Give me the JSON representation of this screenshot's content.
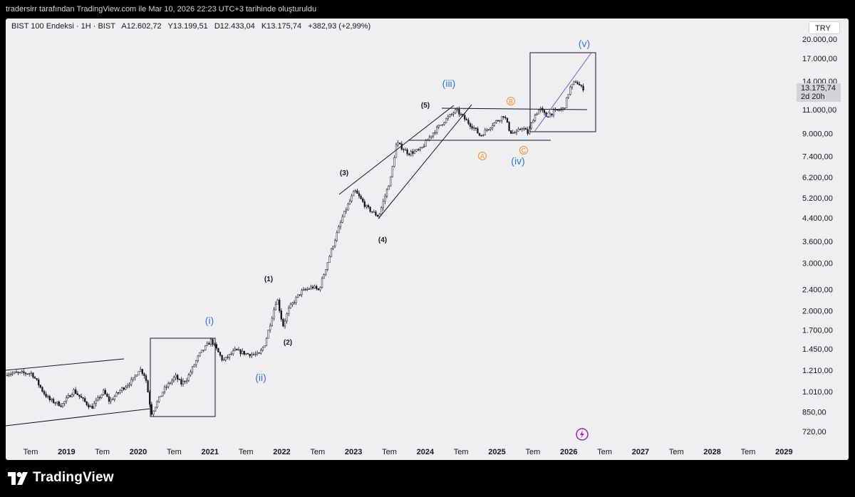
{
  "header": {
    "credit": "tradersirr tarafından TradingView.com ile Mar 10, 2026 22:23 UTC+3 tarihinde oluşturuldu"
  },
  "legend": {
    "symbol": "BIST 100 Endeksi · 1H · BIST",
    "open": "A12.602,72",
    "high": "Y13.199,51",
    "low": "D12.433,04",
    "close": "K13.175,74",
    "change": "+382,93 (+2,99%)"
  },
  "currency_button": "TRY",
  "price_badge": {
    "price": "13.175,74",
    "countdown": "2d 20h"
  },
  "footer": {
    "brand": "TradingView"
  },
  "colors": {
    "wave_blue": "#2f74d6",
    "abc_orange": "#f0902a",
    "trend_purple": "#7e57c2",
    "candle": "#131722",
    "background": "#efeff2"
  },
  "chart_data": {
    "type": "candlestick",
    "scale": "log",
    "y_ticks": [
      "20.000,00",
      "17.000,00",
      "14.000,00",
      "11.000,00",
      "9.000,00",
      "7.400,00",
      "6.200,00",
      "5.200,00",
      "4.400,00",
      "3.600,00",
      "3.000,00",
      "2.400,00",
      "2.000,00",
      "1.700,00",
      "1.450,00",
      "1.210,00",
      "1.010,00",
      "850,00",
      "720,00"
    ],
    "x_ticks": [
      "Tem",
      "2019",
      "Tem",
      "2020",
      "Tem",
      "2021",
      "Tem",
      "2022",
      "Tem",
      "2023",
      "Tem",
      "2024",
      "Tem",
      "2025",
      "Tem",
      "2026",
      "Tem",
      "2027",
      "Tem",
      "2028",
      "Tem",
      "2029"
    ],
    "price_path": [
      {
        "t": "2018-07",
        "v": 1180
      },
      {
        "t": "2018-09",
        "v": 1000
      },
      {
        "t": "2018-10",
        "v": 940
      },
      {
        "t": "2018-12",
        "v": 900
      },
      {
        "t": "2019-02",
        "v": 1020
      },
      {
        "t": "2019-04",
        "v": 920
      },
      {
        "t": "2019-05",
        "v": 880
      },
      {
        "t": "2019-07",
        "v": 1010
      },
      {
        "t": "2019-08",
        "v": 930
      },
      {
        "t": "2019-10",
        "v": 1030
      },
      {
        "t": "2019-12",
        "v": 1120
      },
      {
        "t": "2020-01",
        "v": 1230
      },
      {
        "t": "2020-02",
        "v": 1150
      },
      {
        "t": "2020-03",
        "v": 840
      },
      {
        "t": "2020-05",
        "v": 1020
      },
      {
        "t": "2020-07",
        "v": 1150
      },
      {
        "t": "2020-08",
        "v": 1080
      },
      {
        "t": "2020-09",
        "v": 1130
      },
      {
        "t": "2020-11",
        "v": 1380
      },
      {
        "t": "2021-01",
        "v": 1560
      },
      {
        "t": "2021-03",
        "v": 1310
      },
      {
        "t": "2021-05",
        "v": 1430
      },
      {
        "t": "2021-07",
        "v": 1390
      },
      {
        "t": "2021-09",
        "v": 1380
      },
      {
        "t": "2021-10",
        "v": 1520
      },
      {
        "t": "2021-12",
        "v": 2240
      },
      {
        "t": "2022-01",
        "v": 1760
      },
      {
        "t": "2022-02",
        "v": 2040
      },
      {
        "t": "2022-04",
        "v": 2350
      },
      {
        "t": "2022-06",
        "v": 2450
      },
      {
        "t": "2022-07",
        "v": 2380
      },
      {
        "t": "2022-09",
        "v": 3300
      },
      {
        "t": "2022-11",
        "v": 4450
      },
      {
        "t": "2023-01",
        "v": 5540
      },
      {
        "t": "2023-03",
        "v": 4800
      },
      {
        "t": "2023-05",
        "v": 4450
      },
      {
        "t": "2023-07",
        "v": 6150
      },
      {
        "t": "2023-08",
        "v": 8300
      },
      {
        "t": "2023-10",
        "v": 7600
      },
      {
        "t": "2023-12",
        "v": 7820
      },
      {
        "t": "2024-02",
        "v": 9000
      },
      {
        "t": "2024-04",
        "v": 10000
      },
      {
        "t": "2024-06",
        "v": 10950
      },
      {
        "t": "2024-08",
        "v": 9850
      },
      {
        "t": "2024-09",
        "v": 9400
      },
      {
        "t": "2024-10",
        "v": 8800
      },
      {
        "t": "2024-12",
        "v": 9700
      },
      {
        "t": "2025-02",
        "v": 10500
      },
      {
        "t": "2025-03",
        "v": 9100
      },
      {
        "t": "2025-04",
        "v": 9000
      },
      {
        "t": "2025-05",
        "v": 9500
      },
      {
        "t": "2025-06",
        "v": 9000
      },
      {
        "t": "2025-07",
        "v": 10400
      },
      {
        "t": "2025-08",
        "v": 11100
      },
      {
        "t": "2025-09",
        "v": 10400
      },
      {
        "t": "2025-10",
        "v": 10700
      },
      {
        "t": "2025-11",
        "v": 10950
      },
      {
        "t": "2025-12",
        "v": 11100
      },
      {
        "t": "2026-01",
        "v": 13200
      },
      {
        "t": "2026-02",
        "v": 14000
      },
      {
        "t": "2026-03",
        "v": 13176
      }
    ],
    "wave_labels": [
      {
        "text": "(i)",
        "color": "blue"
      },
      {
        "text": "(ii)",
        "color": "blue"
      },
      {
        "text": "(iii)",
        "color": "blue"
      },
      {
        "text": "(iv)",
        "color": "blue"
      },
      {
        "text": "(v)",
        "color": "blue"
      },
      {
        "text": "(1)",
        "color": "black"
      },
      {
        "text": "(2)",
        "color": "black"
      },
      {
        "text": "(3)",
        "color": "black"
      },
      {
        "text": "(4)",
        "color": "black"
      },
      {
        "text": "(5)",
        "color": "black"
      },
      {
        "text": "A",
        "color": "orange"
      },
      {
        "text": "B",
        "color": "orange"
      },
      {
        "text": "C",
        "color": "orange"
      }
    ]
  }
}
